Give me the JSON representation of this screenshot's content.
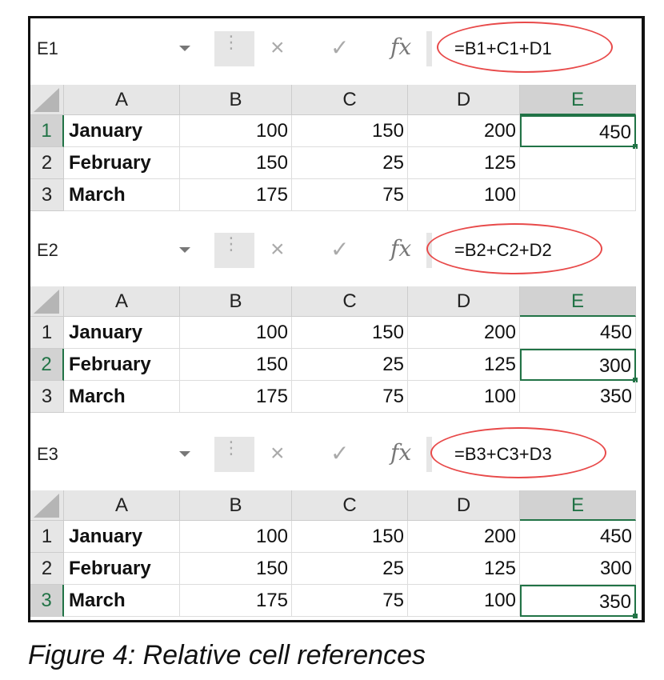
{
  "columns": [
    "A",
    "B",
    "C",
    "D",
    "E"
  ],
  "panels": [
    {
      "name_box": "E1",
      "formula": "=B1+C1+D1",
      "selected_row": 1,
      "rows": [
        {
          "num": "1",
          "cells": [
            "January",
            "100",
            "150",
            "200",
            "450"
          ]
        },
        {
          "num": "2",
          "cells": [
            "February",
            "150",
            "25",
            "125",
            ""
          ]
        },
        {
          "num": "3",
          "cells": [
            "March",
            "175",
            "75",
            "100",
            ""
          ]
        }
      ]
    },
    {
      "name_box": "E2",
      "formula": "=B2+C2+D2",
      "selected_row": 2,
      "rows": [
        {
          "num": "1",
          "cells": [
            "January",
            "100",
            "150",
            "200",
            "450"
          ]
        },
        {
          "num": "2",
          "cells": [
            "February",
            "150",
            "25",
            "125",
            "300"
          ]
        },
        {
          "num": "3",
          "cells": [
            "March",
            "175",
            "75",
            "100",
            "350"
          ]
        }
      ]
    },
    {
      "name_box": "E3",
      "formula": "=B3+C3+D3",
      "selected_row": 3,
      "rows": [
        {
          "num": "1",
          "cells": [
            "January",
            "100",
            "150",
            "200",
            "450"
          ]
        },
        {
          "num": "2",
          "cells": [
            "February",
            "150",
            "25",
            "125",
            "300"
          ]
        },
        {
          "num": "3",
          "cells": [
            "March",
            "175",
            "75",
            "100",
            "350"
          ]
        }
      ]
    }
  ],
  "icons": {
    "cancel": "×",
    "enter": "✓",
    "fx": "fx",
    "more": "⋮"
  },
  "caption": "Figure 4: Relative cell references",
  "colors": {
    "accent": "#217346",
    "highlight": "#e84a4a"
  }
}
